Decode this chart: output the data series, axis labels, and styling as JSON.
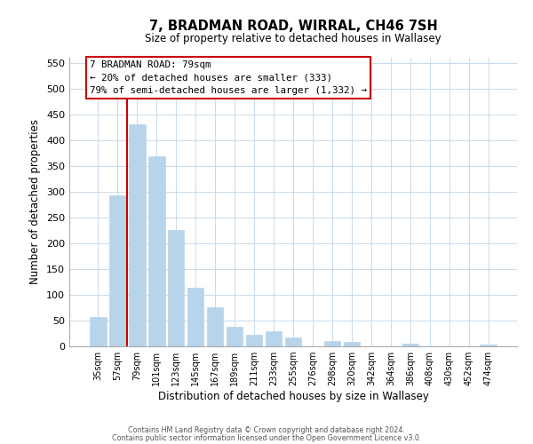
{
  "title": "7, BRADMAN ROAD, WIRRAL, CH46 7SH",
  "subtitle": "Size of property relative to detached houses in Wallasey",
  "xlabel": "Distribution of detached houses by size in Wallasey",
  "ylabel": "Number of detached properties",
  "categories": [
    "35sqm",
    "57sqm",
    "79sqm",
    "101sqm",
    "123sqm",
    "145sqm",
    "167sqm",
    "189sqm",
    "211sqm",
    "233sqm",
    "255sqm",
    "276sqm",
    "298sqm",
    "320sqm",
    "342sqm",
    "364sqm",
    "386sqm",
    "408sqm",
    "430sqm",
    "452sqm",
    "474sqm"
  ],
  "values": [
    57,
    293,
    430,
    368,
    226,
    113,
    76,
    38,
    22,
    29,
    18,
    0,
    11,
    9,
    0,
    0,
    5,
    0,
    0,
    0,
    4
  ],
  "bar_color": "#b8d4ea",
  "bar_edge_color": "#b8d4ea",
  "highlight_line_index": 2,
  "highlight_line_color": "#cc0000",
  "ylim_max": 560,
  "yticks": [
    0,
    50,
    100,
    150,
    200,
    250,
    300,
    350,
    400,
    450,
    500,
    550
  ],
  "annotation_title": "7 BRADMAN ROAD: 79sqm",
  "annotation_line1": "← 20% of detached houses are smaller (333)",
  "annotation_line2": "79% of semi-detached houses are larger (1,332) →",
  "annotation_box_facecolor": "#ffffff",
  "annotation_box_edgecolor": "#cc0000",
  "footer1": "Contains HM Land Registry data © Crown copyright and database right 2024.",
  "footer2": "Contains public sector information licensed under the Open Government Licence v3.0.",
  "background_color": "#ffffff",
  "grid_color": "#c8daea"
}
